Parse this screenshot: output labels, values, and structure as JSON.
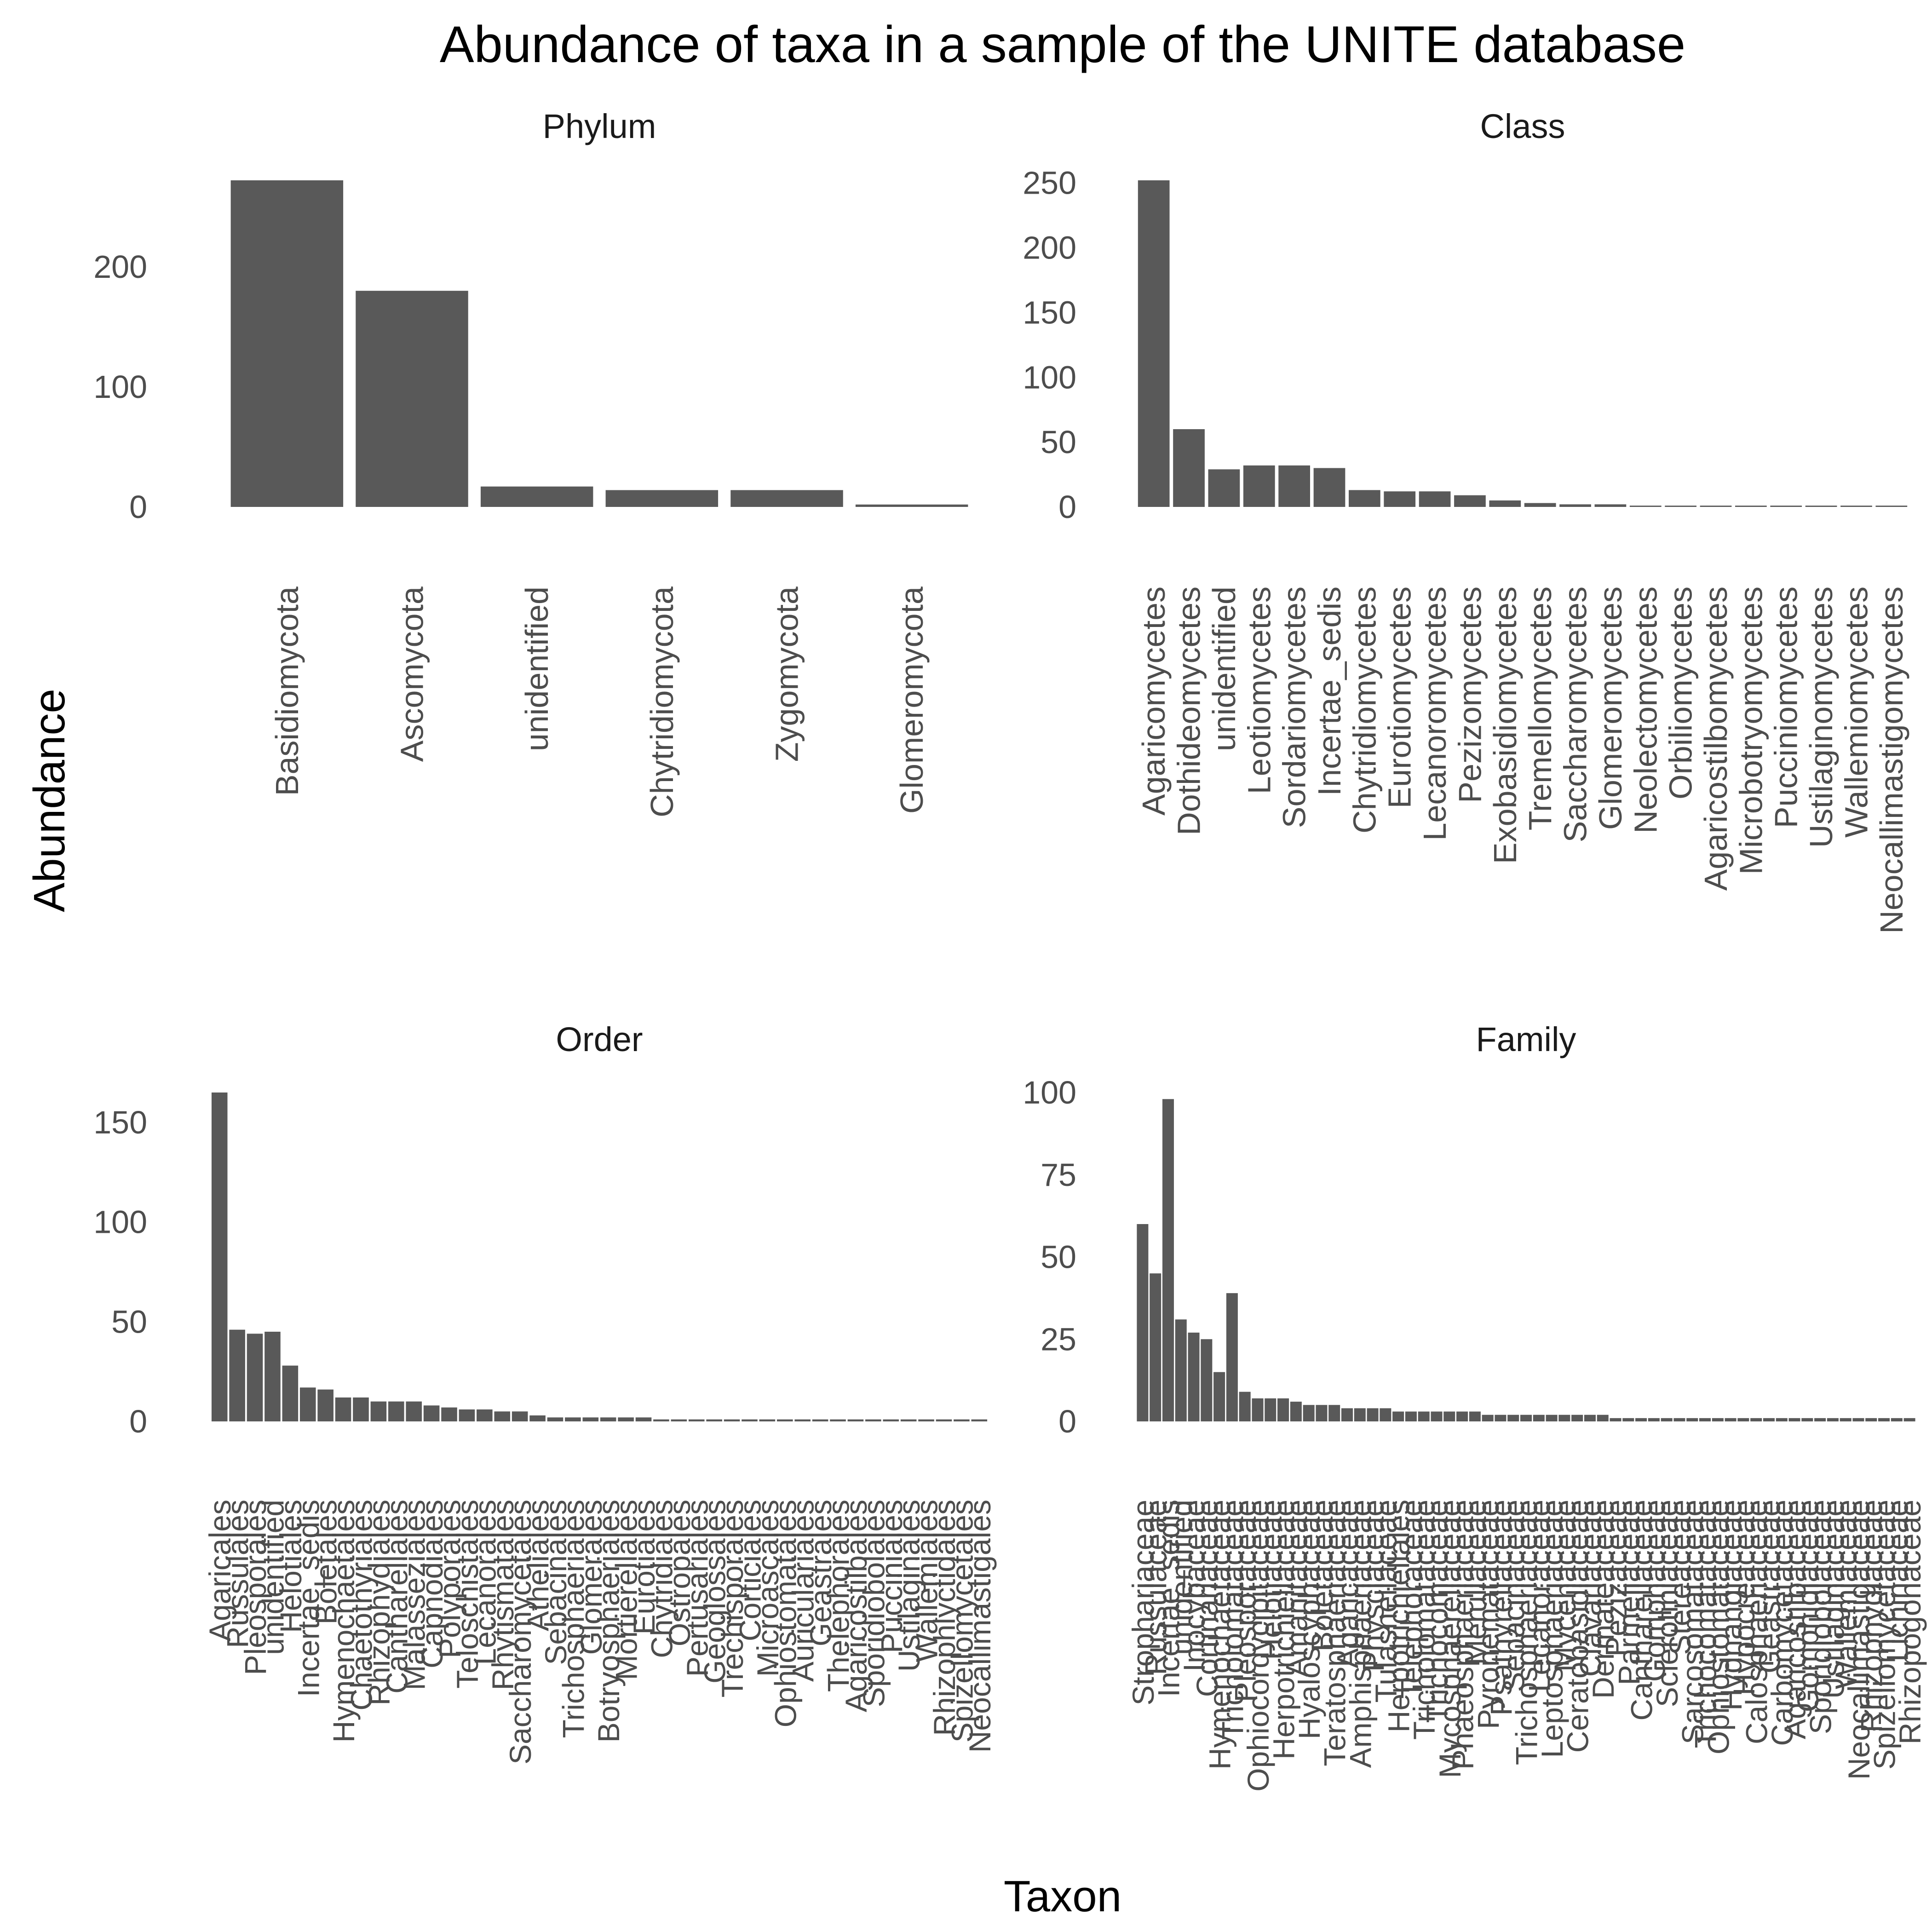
{
  "title": "Abundance of taxa in a sample of the UNITE database",
  "xlabel": "Taxon",
  "ylabel": "Abundance",
  "colors": {
    "bar": "#595959",
    "background": "#ffffff",
    "text": "#1a1a1a",
    "ticks": "#4d4d4d"
  },
  "chart_data": [
    {
      "type": "bar",
      "title": "Phylum",
      "ylim": [
        0,
        272
      ],
      "yticks": [
        0,
        100,
        200
      ],
      "categories": [
        "Basidiomycota",
        "Ascomycota",
        "unidentified",
        "Chytridiomycota",
        "Zygomycota",
        "Glomeromycota"
      ],
      "values": [
        272,
        180,
        17,
        14,
        14,
        2
      ]
    },
    {
      "type": "bar",
      "title": "Class",
      "ylim": [
        0,
        252
      ],
      "yticks": [
        0,
        50,
        100,
        150,
        200,
        250
      ],
      "categories": [
        "Agaricomycetes",
        "Dothideomycetes",
        "unidentified",
        "Leotiomycetes",
        "Sordariomycetes",
        "Incertae_sedis",
        "Chytridiomycetes",
        "Eurotiomycetes",
        "Lecanoromycetes",
        "Pezizomycetes",
        "Exobasidiomycetes",
        "Tremellomycetes",
        "Saccharomycetes",
        "Glomeromycetes",
        "Neolectomycetes",
        "Orbiliomycetes",
        "Agaricostilbomycetes",
        "Microbotryomycetes",
        "Pucciniomycetes",
        "Ustilaginomycetes",
        "Wallemiomycetes",
        "Neocallimastigomycetes"
      ],
      "values": [
        252,
        60,
        29,
        32,
        32,
        30,
        13,
        12,
        12,
        9,
        5,
        3,
        2,
        2,
        1,
        1,
        1,
        1,
        1,
        1,
        1,
        1
      ]
    },
    {
      "type": "bar",
      "title": "Order",
      "ylim": [
        0,
        165
      ],
      "yticks": [
        0,
        50,
        100,
        150
      ],
      "categories": [
        "Agaricales",
        "Russulales",
        "Pleosporales",
        "unidentified",
        "Helotiales",
        "Incertae_sedis",
        "Boletales",
        "Hymenochaetales",
        "Chaetothyriales",
        "Rhizophydiales",
        "Cantharellales",
        "Malasseziales",
        "Capnodiales",
        "Polyporales",
        "Teloschistales",
        "Lecanorales",
        "Rhytismatales",
        "Saccharomycetales",
        "Atheliales",
        "Sebacinales",
        "Trichosphaeriales",
        "Glomerales",
        "Botryosphaeriales",
        "Mortierellales",
        "Eurotiales",
        "Chytridiales",
        "Ostropales",
        "Pertusariales",
        "Geoglossales",
        "Trechisporales",
        "Corticiales",
        "Microascales",
        "Ophiostomatales",
        "Auriculariales",
        "Geastrales",
        "Thelephorales",
        "Agaricostilbales",
        "Sporidiobolales",
        "Pucciniales",
        "Ustilaginales",
        "Wallemiales",
        "Rhizophlyctidales",
        "Spizellomycetales",
        "Neocallimastigales"
      ],
      "values": [
        165,
        46,
        44,
        45,
        28,
        17,
        16,
        12,
        12,
        10,
        10,
        10,
        8,
        7,
        6,
        6,
        5,
        5,
        3,
        2,
        2,
        2,
        2,
        2,
        2,
        1,
        1,
        1,
        1,
        1,
        1,
        1,
        1,
        1,
        1,
        1,
        1,
        1,
        1,
        1,
        1,
        1,
        1,
        1
      ]
    },
    {
      "type": "bar",
      "title": "Family",
      "ylim": [
        0,
        100
      ],
      "yticks": [
        0,
        25,
        50,
        75,
        100
      ],
      "categories": [
        "Strophariaceae",
        "Russulaceae",
        "Incertae_sedis",
        "unidentified",
        "Inocybaceae",
        "Cortinariaceae",
        "Hymenochaetaceae",
        "Tricholomataceae",
        "Pleosporaceae",
        "Ophiocordycipitaceae",
        "Helotiaceae",
        "Herpotrichiellaceae",
        "Amanitaceae",
        "Hyaloscyphaceae",
        "Boletaceae",
        "Teratosphaeriaceae",
        "Agaricaceae",
        "Amphisphaeriaceae",
        "Physciaceae",
        "Tulasnellaceae",
        "Herpotrichiellales",
        "Telephoraceae",
        "Tricholomataceae",
        "Trichocomaceae",
        "Mycosphaerellaceae",
        "Phaeosphaeriaceae",
        "Meruliaceae",
        "Pyronemataceae",
        "Psathyrellaceae",
        "Sebacinaceae",
        "Trichosphaeriaceae",
        "Lecanoraceae",
        "Leptosphaeriaceae",
        "Mycenaceae",
        "Ceratobasidiaceae",
        "Clavariaceae",
        "Dermateaceae",
        "Pezizaceae",
        "Parmeliaceae",
        "Cantharellaceae",
        "Gomphaceae",
        "Sclerotiniaceae",
        "Stereaceae",
        "Sarcosomataceae",
        "Trichocomataceae",
        "Ophiostomataceae",
        "Hydnangiaceae",
        "Hypocreaceae",
        "Calosphaeriaceae",
        "Geastraceae",
        "Carbomycetaceae",
        "Agaricostilbaceae",
        "Gomphidiaceae",
        "Sporidiobolaceae",
        "Ustilaginaceae",
        "Wallemiaceae",
        "Neocallimastigaceae",
        "Rhizophydiaceae",
        "Spizellomycetaceae",
        "Lichinaceae",
        "Rhizopogonaceae"
      ],
      "values": [
        60,
        45,
        98,
        31,
        27,
        25,
        15,
        39,
        9,
        7,
        7,
        7,
        6,
        5,
        5,
        5,
        4,
        4,
        4,
        4,
        3,
        3,
        3,
        3,
        3,
        3,
        3,
        2,
        2,
        2,
        2,
        2,
        2,
        2,
        2,
        2,
        2,
        1,
        1,
        1,
        1,
        1,
        1,
        1,
        1,
        1,
        1,
        1,
        1,
        1,
        1,
        1,
        1,
        1,
        1,
        1,
        1,
        1,
        1,
        1,
        1
      ]
    }
  ]
}
